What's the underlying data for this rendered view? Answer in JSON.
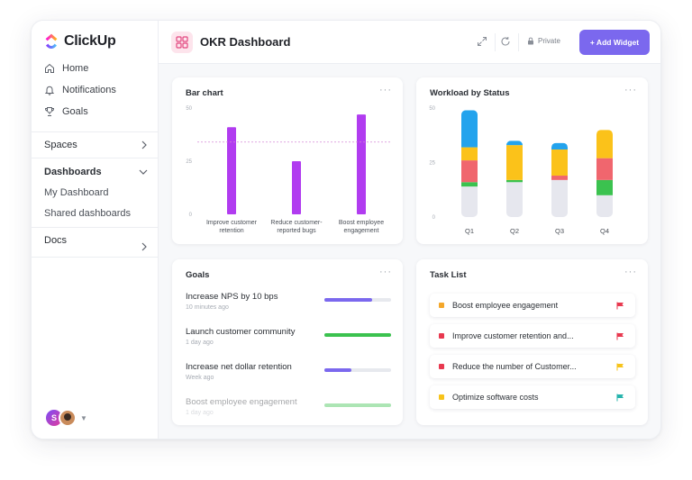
{
  "brand": {
    "name": "ClickUp"
  },
  "sidebar": {
    "nav": [
      {
        "label": "Home",
        "icon": "home-icon"
      },
      {
        "label": "Notifications",
        "icon": "bell-icon"
      },
      {
        "label": "Goals",
        "icon": "trophy-icon"
      }
    ],
    "spaces": "Spaces",
    "dashboards": "Dashboards",
    "dashboard_items": [
      "My Dashboard",
      "Shared dashboards"
    ],
    "docs": "Docs",
    "avatar_initial": "S"
  },
  "topbar": {
    "title": "OKR Dashboard",
    "privacy": "Private",
    "add_widget": "+ Add Widget"
  },
  "bar_widget": {
    "title": "Bar chart",
    "more": "···",
    "chart_data": {
      "type": "bar",
      "categories": [
        [
          "Improve customer",
          "retention"
        ],
        [
          "Reduce customer-",
          "reported bugs"
        ],
        [
          "Boost employee",
          "engagement"
        ]
      ],
      "values": [
        41,
        25,
        47
      ],
      "target": 34,
      "ylim": [
        0,
        50
      ],
      "yticks": [
        0,
        25,
        50
      ],
      "color": "#b13cf0",
      "target_color": "#d58ad6"
    }
  },
  "workload_widget": {
    "title": "Workload by Status",
    "more": "···",
    "chart_data": {
      "type": "bar",
      "stacked": true,
      "categories": [
        "Q1",
        "Q2",
        "Q3",
        "Q4"
      ],
      "ylim": [
        0,
        50
      ],
      "yticks": [
        0,
        25,
        50
      ],
      "series": [
        {
          "color": "#e6e7ee",
          "values": [
            14,
            16,
            17,
            10
          ]
        },
        {
          "color": "#3bc24f",
          "values": [
            2,
            1,
            0,
            7
          ]
        },
        {
          "color": "#f0666e",
          "values": [
            10,
            0,
            2,
            10
          ]
        },
        {
          "color": "#fbc21a",
          "values": [
            6,
            16,
            12,
            13
          ]
        },
        {
          "color": "#23a3ed",
          "values": [
            17,
            2,
            3,
            0
          ]
        }
      ]
    }
  },
  "goals_widget": {
    "title": "Goals",
    "more": "···",
    "items": [
      {
        "name": "Increase NPS by 10 bps",
        "time": "10 minutes ago",
        "progress": 0.72,
        "color": "#7b68ee"
      },
      {
        "name": "Launch customer community",
        "time": "1 day ago",
        "progress": 1.0,
        "color": "#3bc24f"
      },
      {
        "name": "Increase net dollar retention",
        "time": "Week ago",
        "progress": 0.4,
        "color": "#7b68ee"
      },
      {
        "name": "Boost employee engagement",
        "time": "1 day ago",
        "progress": 1.0,
        "color": "#3bc24f"
      }
    ]
  },
  "tasks_widget": {
    "title": "Task List",
    "more": "···",
    "items": [
      {
        "name": "Boost employee engagement",
        "dot": "#f4a72a",
        "flag": "#e8384f"
      },
      {
        "name": "Improve customer retention and...",
        "dot": "#e8384f",
        "flag": "#e8384f"
      },
      {
        "name": "Reduce the number of Customer...",
        "dot": "#e8384f",
        "flag": "#f7c31a"
      },
      {
        "name": "Optimize software costs",
        "dot": "#f7c31a",
        "flag": "#27b4ad"
      }
    ]
  }
}
